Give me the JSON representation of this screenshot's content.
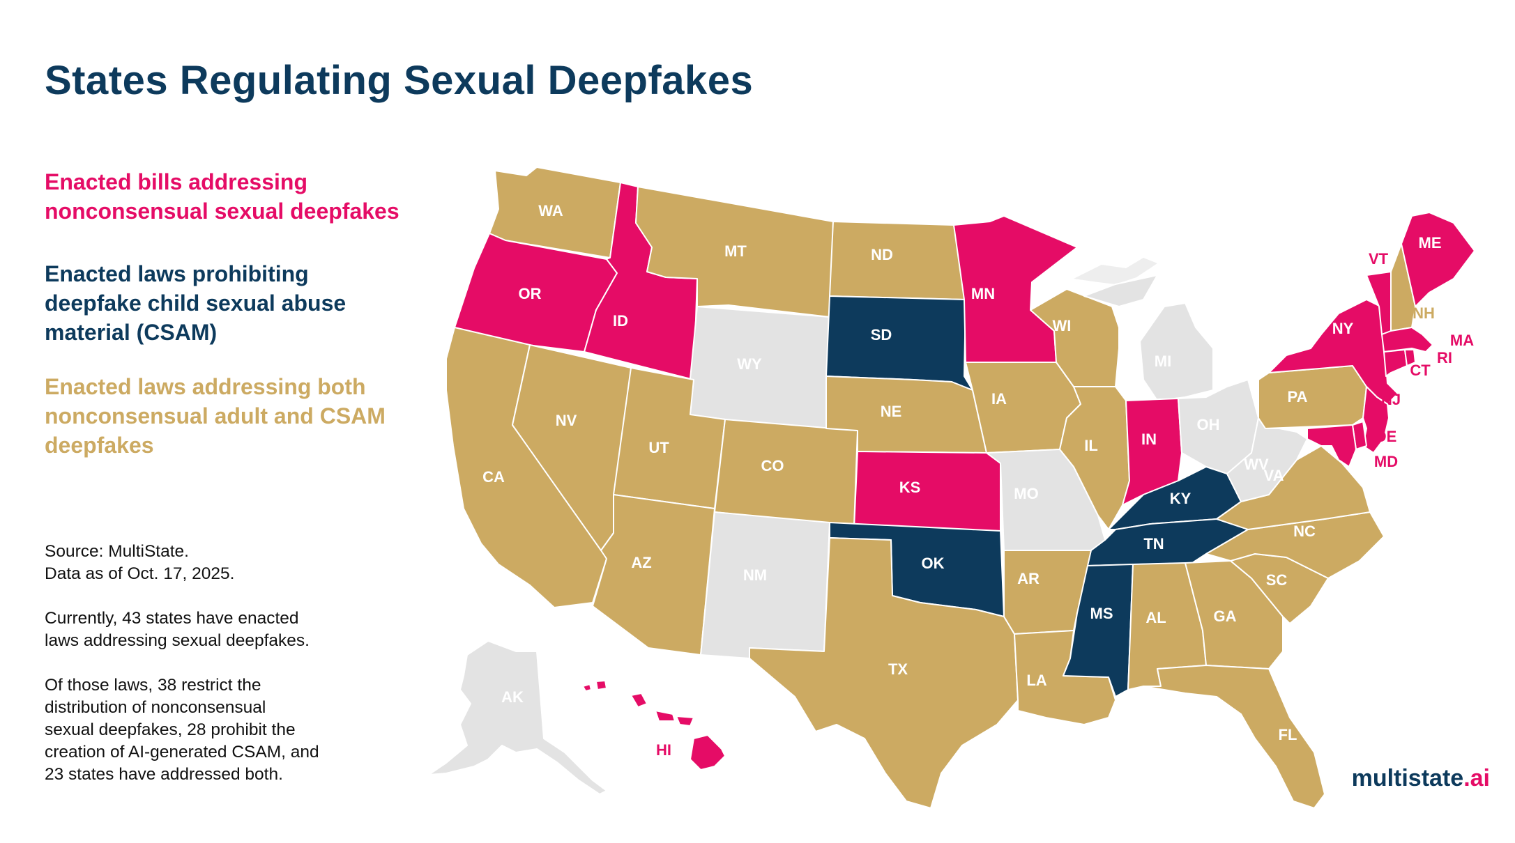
{
  "title": "States Regulating Sexual Deepfakes",
  "colors": {
    "nonconsensual": "#e50c66",
    "csam": "#0d3a5c",
    "both": "#ccaa62",
    "none": "#e3e3e3"
  },
  "legend": {
    "nonconsensual": [
      "Enacted bills addressing",
      "nonconsensual sexual deepfakes"
    ],
    "csam": [
      "Enacted laws prohibiting",
      "deepfake child sexual abuse",
      "material (CSAM)"
    ],
    "both": [
      "Enacted laws addressing both",
      "nonconsensual adult and CSAM",
      "deepfakes"
    ]
  },
  "notes": {
    "source": [
      "Source: MultiState.",
      "Data as of Oct. 17, 2025."
    ],
    "summary": [
      "Currently, 43 states have enacted",
      "laws addressing sexual deepfakes."
    ],
    "detail": [
      "Of those laws, 38 restrict the",
      "distribution of nonconsensual",
      "sexual deepfakes, 28 prohibit the",
      "creation of AI-generated CSAM, and",
      "23 states have addressed both."
    ]
  },
  "brand": {
    "name": "multistate",
    "tld": ".ai"
  },
  "states": [
    {
      "abbr": "WA",
      "category": "both"
    },
    {
      "abbr": "OR",
      "category": "nonconsensual"
    },
    {
      "abbr": "CA",
      "category": "both"
    },
    {
      "abbr": "ID",
      "category": "nonconsensual"
    },
    {
      "abbr": "NV",
      "category": "both"
    },
    {
      "abbr": "MT",
      "category": "both"
    },
    {
      "abbr": "WY",
      "category": "none"
    },
    {
      "abbr": "UT",
      "category": "both"
    },
    {
      "abbr": "AZ",
      "category": "both"
    },
    {
      "abbr": "CO",
      "category": "both"
    },
    {
      "abbr": "NM",
      "category": "none"
    },
    {
      "abbr": "ND",
      "category": "both"
    },
    {
      "abbr": "SD",
      "category": "csam"
    },
    {
      "abbr": "NE",
      "category": "both"
    },
    {
      "abbr": "KS",
      "category": "nonconsensual"
    },
    {
      "abbr": "OK",
      "category": "csam"
    },
    {
      "abbr": "TX",
      "category": "both"
    },
    {
      "abbr": "MN",
      "category": "nonconsensual"
    },
    {
      "abbr": "IA",
      "category": "both"
    },
    {
      "abbr": "MO",
      "category": "none"
    },
    {
      "abbr": "AR",
      "category": "both"
    },
    {
      "abbr": "LA",
      "category": "both"
    },
    {
      "abbr": "WI",
      "category": "both"
    },
    {
      "abbr": "IL",
      "category": "both"
    },
    {
      "abbr": "MI",
      "category": "none"
    },
    {
      "abbr": "IN",
      "category": "nonconsensual"
    },
    {
      "abbr": "OH",
      "category": "none"
    },
    {
      "abbr": "KY",
      "category": "csam"
    },
    {
      "abbr": "TN",
      "category": "csam"
    },
    {
      "abbr": "MS",
      "category": "csam"
    },
    {
      "abbr": "AL",
      "category": "both"
    },
    {
      "abbr": "GA",
      "category": "both"
    },
    {
      "abbr": "FL",
      "category": "both"
    },
    {
      "abbr": "SC",
      "category": "both"
    },
    {
      "abbr": "NC",
      "category": "both"
    },
    {
      "abbr": "VA",
      "category": "both"
    },
    {
      "abbr": "WV",
      "category": "none"
    },
    {
      "abbr": "PA",
      "category": "both"
    },
    {
      "abbr": "NY",
      "category": "nonconsensual"
    },
    {
      "abbr": "VT",
      "category": "nonconsensual"
    },
    {
      "abbr": "NH",
      "category": "both"
    },
    {
      "abbr": "ME",
      "category": "nonconsensual"
    },
    {
      "abbr": "MA",
      "category": "nonconsensual"
    },
    {
      "abbr": "RI",
      "category": "nonconsensual"
    },
    {
      "abbr": "CT",
      "category": "nonconsensual"
    },
    {
      "abbr": "NJ",
      "category": "nonconsensual"
    },
    {
      "abbr": "DE",
      "category": "nonconsensual"
    },
    {
      "abbr": "MD",
      "category": "nonconsensual"
    },
    {
      "abbr": "AK",
      "category": "none"
    },
    {
      "abbr": "HI",
      "category": "nonconsensual"
    }
  ]
}
